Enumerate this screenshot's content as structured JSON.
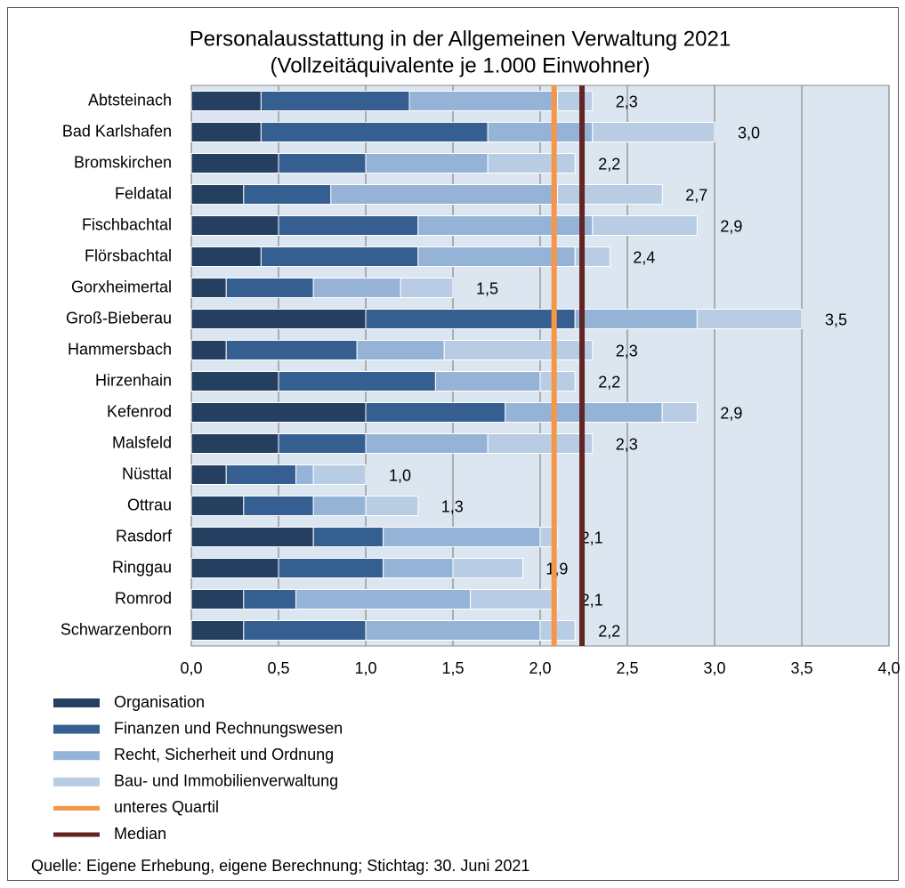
{
  "chart_data": {
    "type": "stacked_barh",
    "title": "Personalausstattung in der Allgemeinen Verwaltung 2021",
    "subtitle": "(Vollzeitäquivalente je 1.000 Einwohner)",
    "categories": [
      "Abtsteinach",
      "Bad Karlshafen",
      "Bromskirchen",
      "Feldatal",
      "Fischbachtal",
      "Flörsbachtal",
      "Gorxheimertal",
      "Groß-Bieberau",
      "Hammersbach",
      "Hirzenhain",
      "Kefenrod",
      "Malsfeld",
      "Nüsttal",
      "Ottrau",
      "Rasdorf",
      "Ringgau",
      "Romrod",
      "Schwarzenborn"
    ],
    "series": [
      {
        "name": "Organisation",
        "color": "#243f60",
        "values": [
          0.4,
          0.4,
          0.5,
          0.3,
          0.5,
          0.4,
          0.2,
          1.0,
          0.2,
          0.5,
          1.0,
          0.5,
          0.2,
          0.3,
          0.7,
          0.5,
          0.3,
          0.3
        ]
      },
      {
        "name": "Finanzen und Rechnungswesen",
        "color": "#365f91",
        "values": [
          0.85,
          1.3,
          0.5,
          0.5,
          0.8,
          0.9,
          0.5,
          1.2,
          0.75,
          0.9,
          0.8,
          0.5,
          0.4,
          0.4,
          0.4,
          0.6,
          0.3,
          0.7
        ]
      },
      {
        "name": "Recht, Sicherheit und Ordnung",
        "color": "#95b3d7",
        "values": [
          0.85,
          0.6,
          0.7,
          1.3,
          1.0,
          0.9,
          0.5,
          0.7,
          0.5,
          0.6,
          0.9,
          0.7,
          0.1,
          0.3,
          0.9,
          0.4,
          1.0,
          1.0
        ]
      },
      {
        "name": "Bau- und Immobilienverwaltung",
        "color": "#b8cce4",
        "values": [
          0.2,
          0.7,
          0.5,
          0.6,
          0.6,
          0.2,
          0.3,
          0.6,
          0.85,
          0.2,
          0.2,
          0.6,
          0.3,
          0.3,
          0.1,
          0.4,
          0.5,
          0.2
        ]
      }
    ],
    "totals": [
      2.3,
      3.0,
      2.2,
      2.7,
      2.9,
      2.4,
      1.5,
      3.5,
      2.3,
      2.2,
      2.9,
      2.3,
      1.0,
      1.3,
      2.1,
      1.9,
      2.1,
      2.2
    ],
    "total_labels": [
      "2,3",
      "3,0",
      "2,2",
      "2,7",
      "2,9",
      "2,4",
      "1,5",
      "3,5",
      "2,3",
      "2,2",
      "2,9",
      "2,3",
      "1,0",
      "1,3",
      "2,1",
      "1,9",
      "2,1",
      "2,2"
    ],
    "reference_lines": [
      {
        "name": "unteres Quartil",
        "color": "#f79646",
        "value": 2.08
      },
      {
        "name": "Median",
        "color": "#632523",
        "value": 2.24
      }
    ],
    "xlim": [
      0,
      4
    ],
    "xticks": [
      {
        "value": 0,
        "label": "0,0"
      },
      {
        "value": 0.5,
        "label": "0,5"
      },
      {
        "value": 1,
        "label": "1,0"
      },
      {
        "value": 1.5,
        "label": "1,5"
      },
      {
        "value": 2,
        "label": "2,0"
      },
      {
        "value": 2.5,
        "label": "2,5"
      },
      {
        "value": 3,
        "label": "3,0"
      },
      {
        "value": 3.5,
        "label": "3,5"
      },
      {
        "value": 4,
        "label": "4,0"
      }
    ],
    "grid": true,
    "plot_background": "#dce6f1",
    "source": "Quelle: Eigene Erhebung, eigene Berechnung; Stichtag: 30. Juni 2021"
  }
}
